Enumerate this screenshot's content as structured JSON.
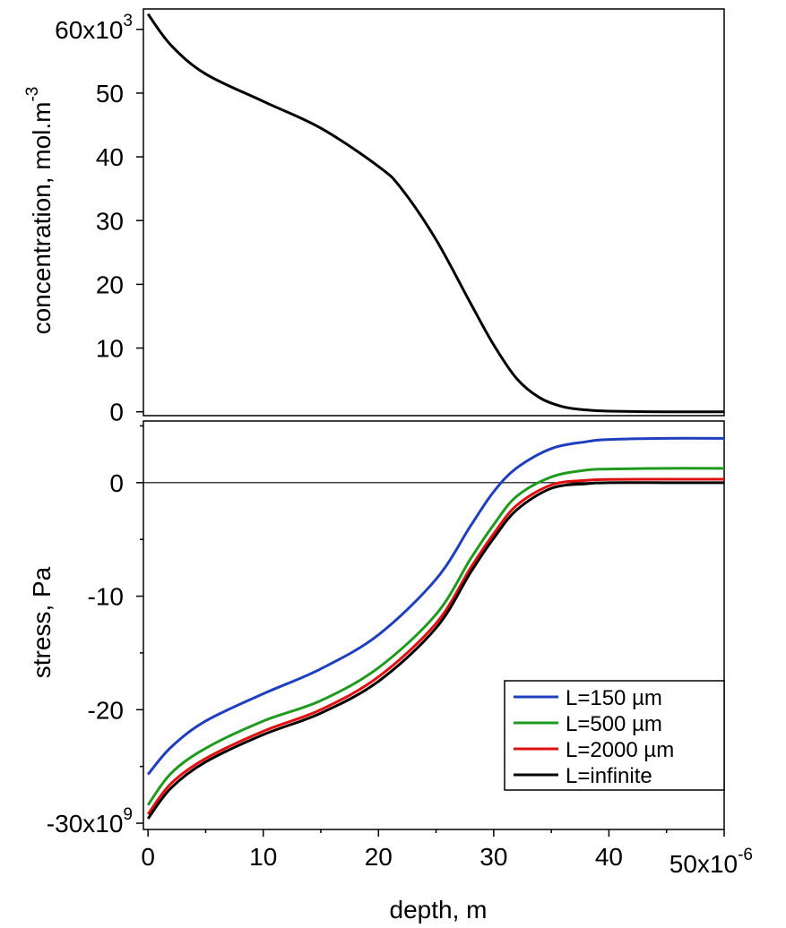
{
  "chart_data": [
    {
      "type": "line",
      "y_label": "concentration, mol.m",
      "y_label_exponent": "-3",
      "xlim": [
        -0.4,
        50
      ],
      "ylim": [
        -0.6,
        63.2
      ],
      "yticks": [
        0,
        10,
        20,
        30,
        40,
        50,
        {
          "value": 60,
          "label": "60x10",
          "exponent": "3"
        }
      ],
      "x": [
        0,
        2,
        5,
        10,
        15,
        20,
        22,
        25,
        28,
        30,
        32,
        34,
        36,
        38,
        40,
        45,
        50
      ],
      "series": [
        {
          "color": "#000000",
          "values": [
            62.4,
            57.5,
            53,
            48.7,
            44.5,
            38.5,
            35,
            27,
            17,
            10.5,
            5.2,
            2.2,
            0.8,
            0.3,
            0.1,
            0,
            0
          ]
        }
      ]
    },
    {
      "type": "line",
      "x_label": "depth, m",
      "y_label": "stress, Pa",
      "xlim": [
        -0.4,
        50
      ],
      "xticks": [
        0,
        10,
        20,
        30,
        40,
        {
          "value": 50,
          "label": "50x10",
          "exponent": "-6"
        }
      ],
      "xminor_ticks": [
        5,
        15,
        25,
        35,
        45
      ],
      "ylim": [
        -30.55,
        5.43
      ],
      "yticks": [
        0,
        -10,
        -20,
        {
          "value": -30,
          "label": "-30x10",
          "exponent": "9"
        }
      ],
      "yminor_ticks": [
        5,
        -5,
        -15,
        -25
      ],
      "hline": 0,
      "legend": "lower right",
      "x": [
        0,
        2,
        5,
        10,
        15,
        20,
        25,
        28,
        30,
        32,
        35,
        38,
        40,
        45,
        50
      ],
      "series": [
        {
          "name": "L=150 µm",
          "color": "#1f3fbf",
          "values": [
            -25.7,
            -23.3,
            -21,
            -18.6,
            -16.4,
            -13.4,
            -8.5,
            -3.8,
            -0.8,
            1.3,
            3.0,
            3.6,
            3.8,
            3.9,
            3.9
          ]
        },
        {
          "name": "L=500 µm",
          "color": "#1f9a1f",
          "values": [
            -28.4,
            -25.6,
            -23.4,
            -21.0,
            -19.2,
            -16.3,
            -11.6,
            -6.7,
            -3.7,
            -1.2,
            0.5,
            1.1,
            1.2,
            1.26,
            1.26
          ]
        },
        {
          "name": "L=2000 µm",
          "color": "#e01010",
          "values": [
            -29.2,
            -26.5,
            -24.3,
            -21.9,
            -20.0,
            -17.1,
            -12.4,
            -7.5,
            -4.5,
            -2,
            -0.2,
            0.2,
            0.28,
            0.3,
            0.3
          ]
        },
        {
          "name": "L=infinite",
          "color": "#000000",
          "values": [
            -29.6,
            -26.9,
            -24.6,
            -22.2,
            -20.3,
            -17.5,
            -12.8,
            -7.9,
            -4.9,
            -2.4,
            -0.5,
            -0.1,
            0,
            0,
            0
          ]
        }
      ]
    }
  ]
}
